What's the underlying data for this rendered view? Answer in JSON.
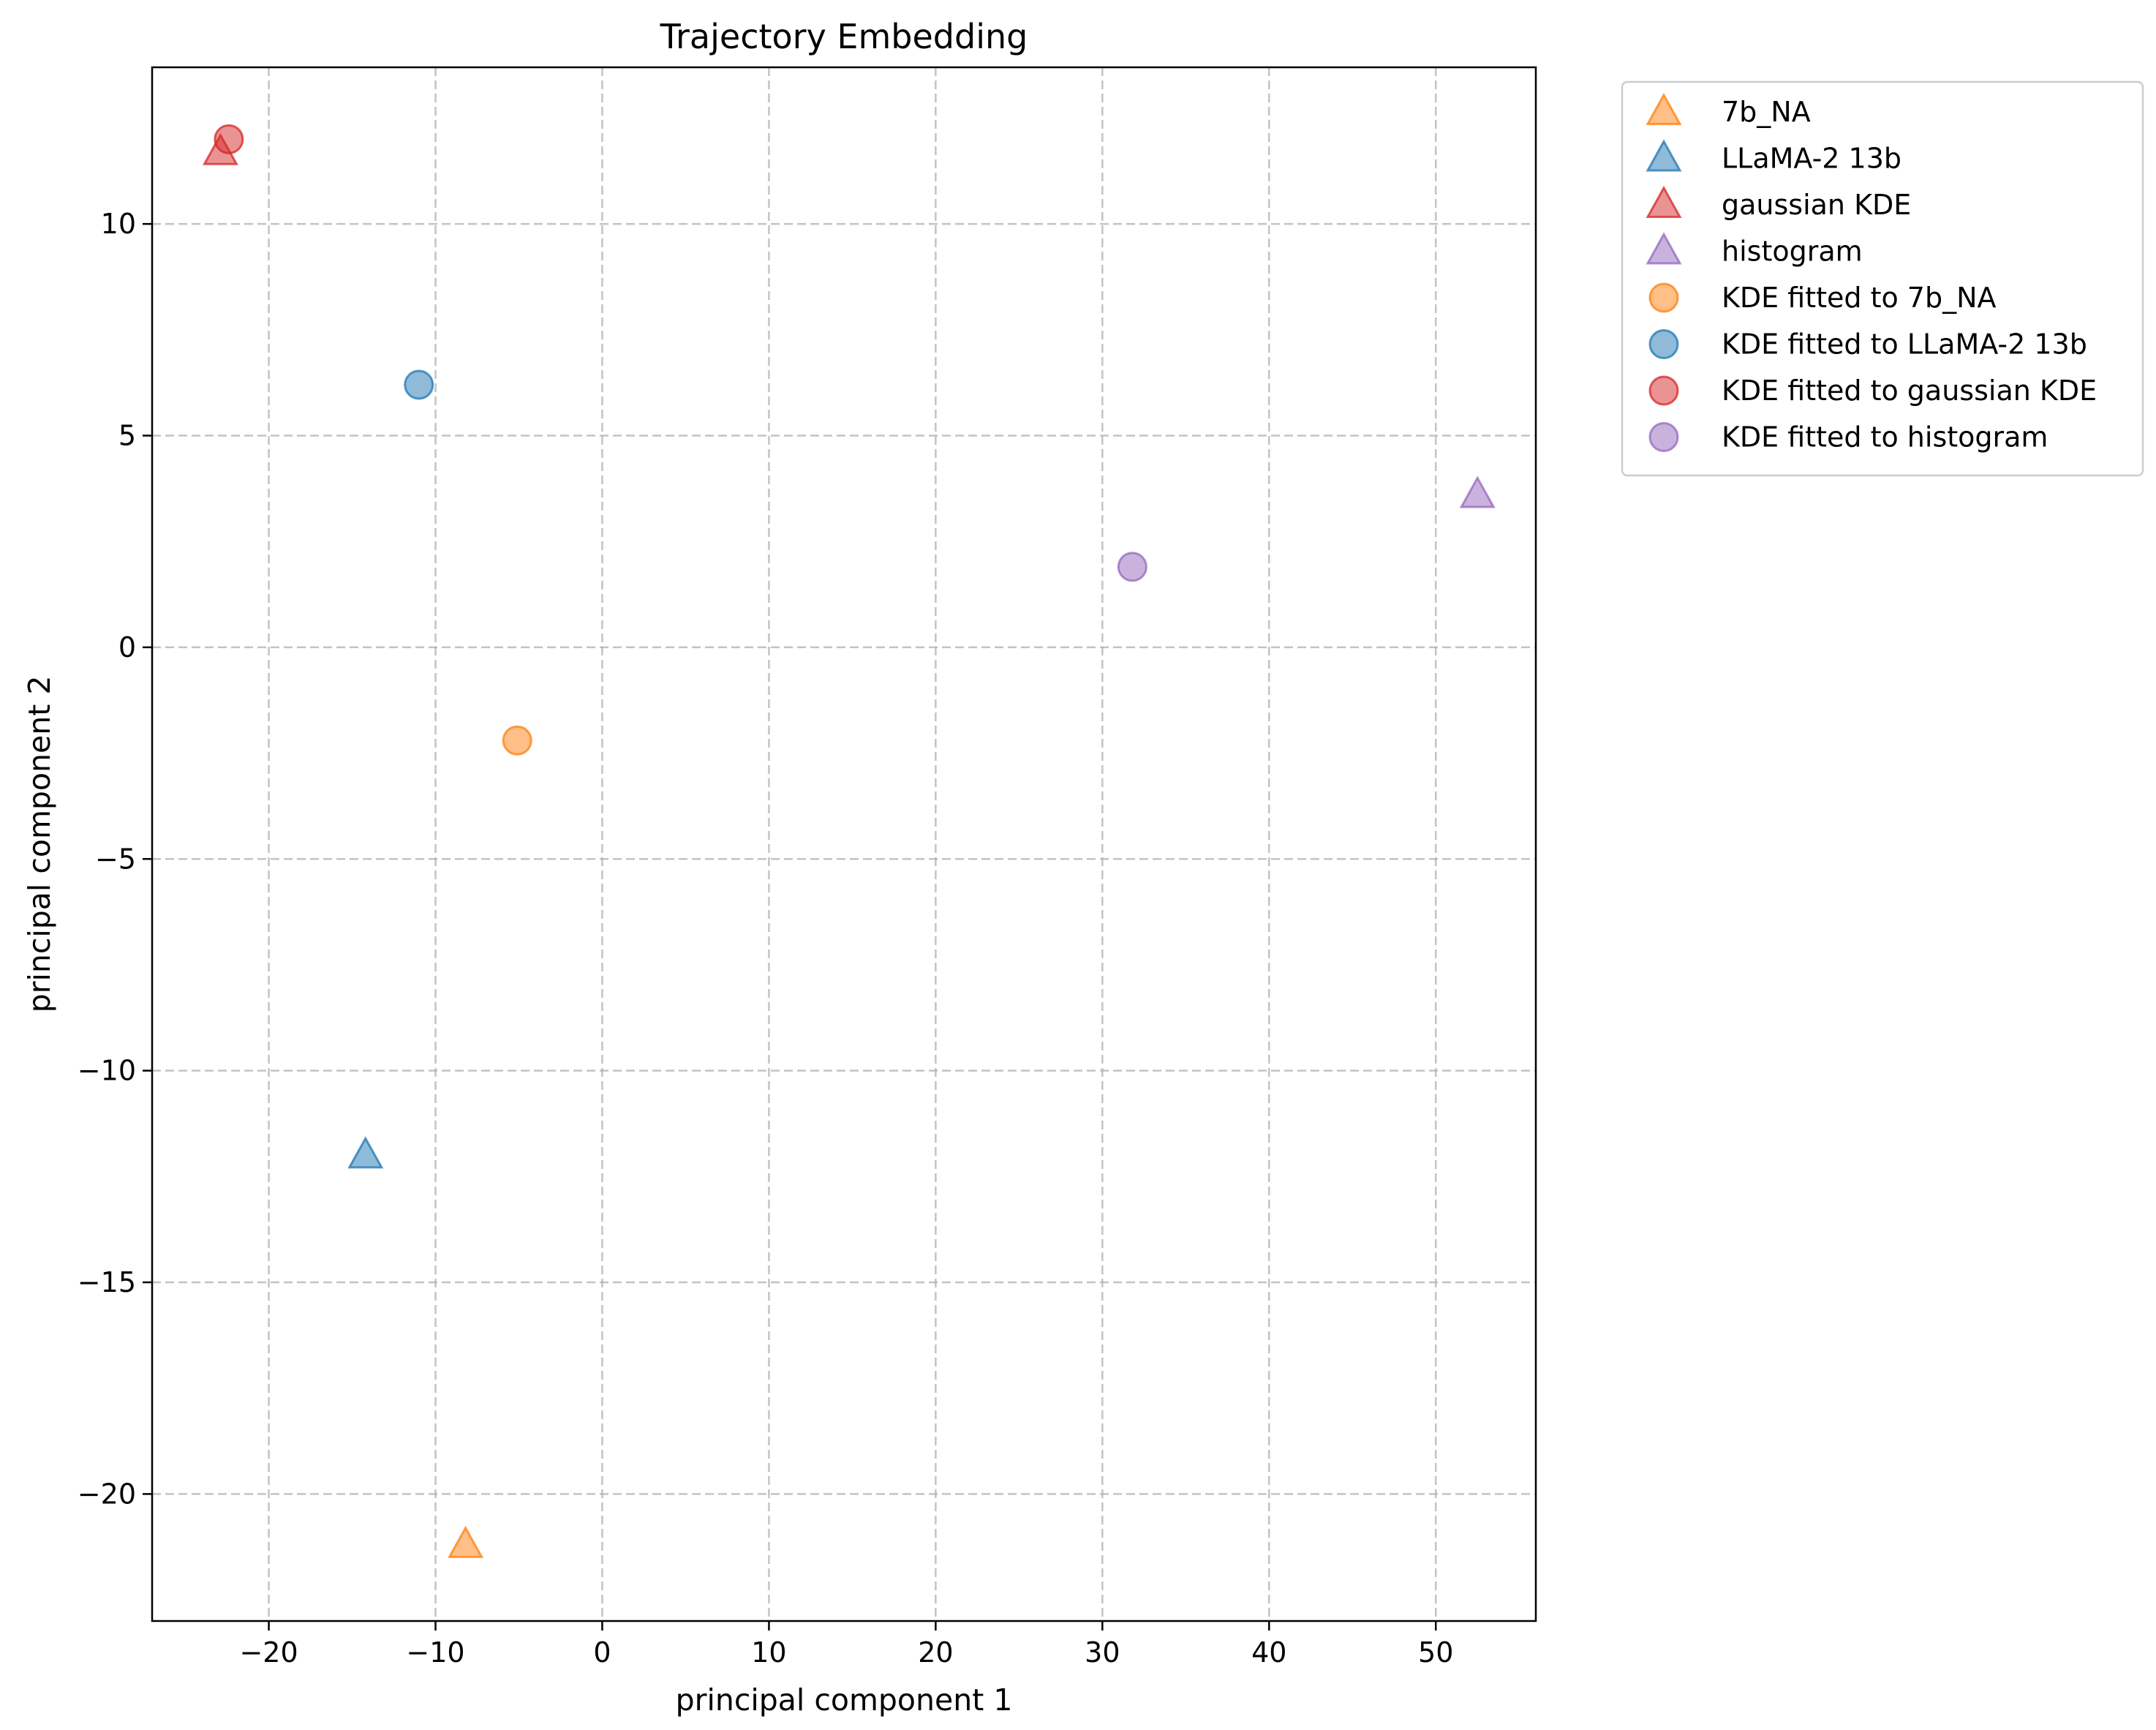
{
  "chart_data": {
    "type": "scatter",
    "title": "Trajectory Embedding",
    "xlabel": "principal component 1",
    "ylabel": "principal component 2",
    "xlim": [
      -27,
      56
    ],
    "ylim": [
      -23,
      13.7
    ],
    "xticks": [
      -20,
      -10,
      0,
      10,
      20,
      30,
      40,
      50
    ],
    "yticks": [
      -20,
      -15,
      -10,
      -5,
      0,
      5,
      10
    ],
    "grid": true,
    "legend_position": "outside-right-top",
    "series": [
      {
        "name": "7b_NA",
        "marker": "triangle",
        "color": "#ff7f0e",
        "points": [
          {
            "x": -8.2,
            "y": -21.2
          }
        ]
      },
      {
        "name": "LLaMA-2 13b",
        "marker": "triangle",
        "color": "#1f77b4",
        "points": [
          {
            "x": -14.2,
            "y": -12.0
          }
        ]
      },
      {
        "name": "gaussian KDE",
        "marker": "triangle",
        "color": "#d62728",
        "points": [
          {
            "x": -22.9,
            "y": 11.7
          }
        ]
      },
      {
        "name": "histogram",
        "marker": "triangle",
        "color": "#9467bd",
        "points": [
          {
            "x": 52.5,
            "y": 3.6
          }
        ]
      },
      {
        "name": "KDE fitted to 7b_NA",
        "marker": "circle",
        "color": "#ff7f0e",
        "points": [
          {
            "x": -5.1,
            "y": -2.2
          }
        ]
      },
      {
        "name": "KDE fitted to LLaMA-2 13b",
        "marker": "circle",
        "color": "#1f77b4",
        "points": [
          {
            "x": -11.0,
            "y": 6.2
          }
        ]
      },
      {
        "name": "KDE fitted to gaussian KDE",
        "marker": "circle",
        "color": "#d62728",
        "points": [
          {
            "x": -22.4,
            "y": 12.0
          }
        ]
      },
      {
        "name": "KDE fitted to histogram",
        "marker": "circle",
        "color": "#9467bd",
        "points": [
          {
            "x": 31.8,
            "y": 1.9
          }
        ]
      }
    ]
  }
}
